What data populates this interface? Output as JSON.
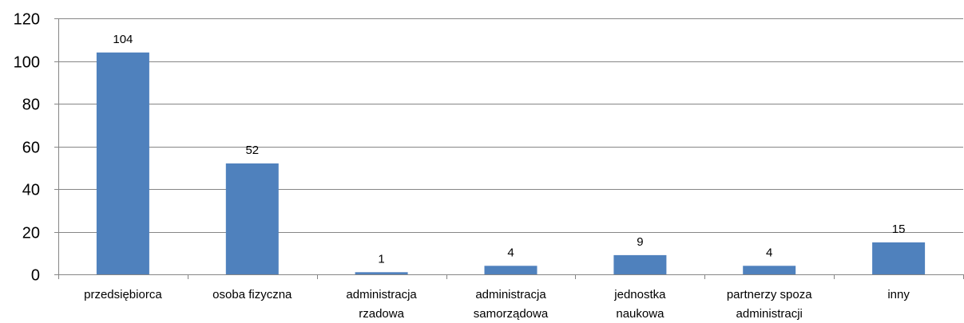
{
  "colors": {
    "bar": "#4f81bd",
    "grid": "#868686",
    "axis": "#868686"
  },
  "chart_data": {
    "type": "bar",
    "categories": [
      [
        "przedsiębiorca"
      ],
      [
        "osoba fizyczna"
      ],
      [
        "administracja",
        "rzadowa"
      ],
      [
        "administracja",
        "samorządowa"
      ],
      [
        "jednostka",
        "naukowa"
      ],
      [
        "partnerzy spoza",
        "administracji"
      ],
      [
        "inny"
      ]
    ],
    "values": [
      104,
      52,
      1,
      4,
      9,
      4,
      15
    ],
    "data_labels": [
      "104",
      "52",
      "1",
      "4",
      "9",
      "4",
      "15"
    ],
    "ylim": [
      0,
      120
    ],
    "yticks": [
      0,
      20,
      40,
      60,
      80,
      100,
      120
    ],
    "grid": true,
    "legend": "none"
  }
}
